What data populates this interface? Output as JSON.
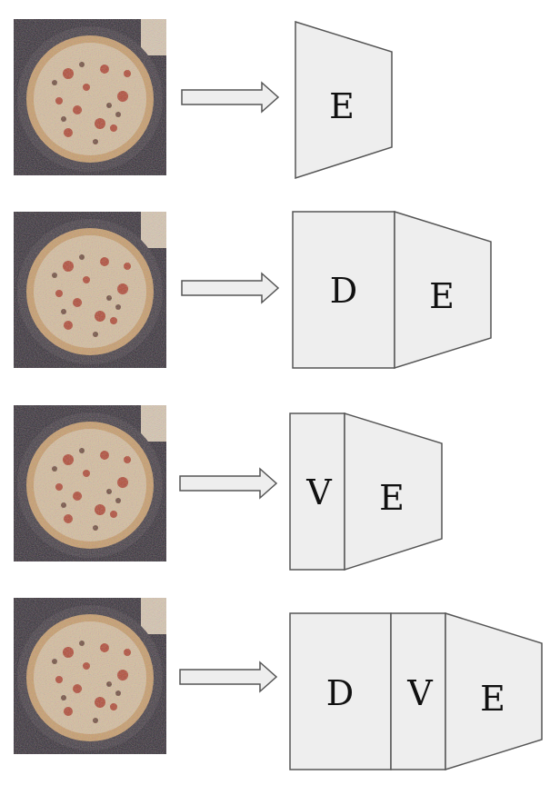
{
  "colors": {
    "block_fill": "#eeeeee",
    "block_stroke": "#555555",
    "arrow_fill": "#eeeeee",
    "arrow_stroke": "#555555"
  },
  "rows": [
    {
      "input_image": "noisy-pizza-photo",
      "blocks": [
        "E"
      ]
    },
    {
      "input_image": "noisy-pizza-photo",
      "blocks": [
        "D",
        "E"
      ]
    },
    {
      "input_image": "noisy-pizza-photo",
      "blocks": [
        "V",
        "E"
      ]
    },
    {
      "input_image": "noisy-pizza-photo",
      "blocks": [
        "D",
        "V",
        "E"
      ]
    }
  ]
}
